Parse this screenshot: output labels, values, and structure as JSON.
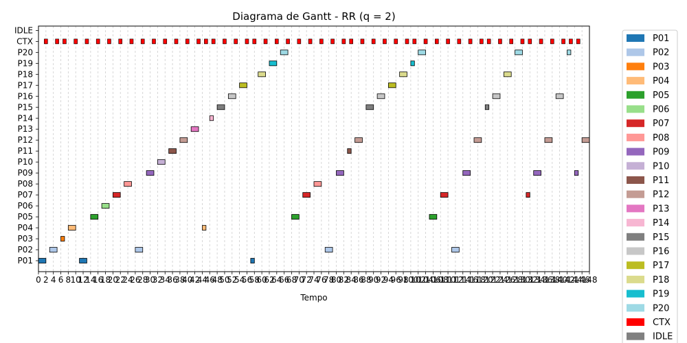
{
  "chart_data": {
    "type": "gantt",
    "title": "Diagrama de Gantt - RR (q = 2)",
    "xlabel": "Tempo",
    "ylabel": "",
    "xlim": [
      0,
      148
    ],
    "x_ticks": [
      0,
      2,
      4,
      6,
      8,
      10,
      12,
      14,
      16,
      18,
      20,
      22,
      24,
      26,
      28,
      30,
      32,
      34,
      36,
      38,
      40,
      42,
      44,
      46,
      48,
      50,
      52,
      54,
      56,
      58,
      60,
      62,
      64,
      66,
      68,
      70,
      72,
      74,
      76,
      78,
      80,
      82,
      84,
      86,
      88,
      90,
      92,
      94,
      96,
      98,
      100,
      102,
      104,
      106,
      108,
      110,
      112,
      114,
      116,
      118,
      120,
      122,
      124,
      126,
      128,
      130,
      132,
      134,
      136,
      138,
      140,
      142,
      144,
      146,
      148
    ],
    "rows": [
      "P01",
      "P02",
      "P03",
      "P04",
      "P05",
      "P06",
      "P07",
      "P08",
      "P09",
      "P10",
      "P11",
      "P12",
      "P13",
      "P14",
      "P15",
      "P16",
      "P17",
      "P18",
      "P19",
      "P20",
      "CTX",
      "IDLE"
    ],
    "grid": "x-dashed",
    "legend_position": "right-outside",
    "legend": [
      {
        "label": "P01",
        "color": "#1f77b4"
      },
      {
        "label": "P02",
        "color": "#aec7e8"
      },
      {
        "label": "P03",
        "color": "#ff7f0e"
      },
      {
        "label": "P04",
        "color": "#ffbb78"
      },
      {
        "label": "P05",
        "color": "#2ca02c"
      },
      {
        "label": "P06",
        "color": "#98df8a"
      },
      {
        "label": "P07",
        "color": "#d62728"
      },
      {
        "label": "P08",
        "color": "#ff9896"
      },
      {
        "label": "P09",
        "color": "#9467bd"
      },
      {
        "label": "P10",
        "color": "#c5b0d5"
      },
      {
        "label": "P11",
        "color": "#8c564b"
      },
      {
        "label": "P12",
        "color": "#c49c94"
      },
      {
        "label": "P13",
        "color": "#e377c2"
      },
      {
        "label": "P14",
        "color": "#f7b6d2"
      },
      {
        "label": "P15",
        "color": "#7f7f7f"
      },
      {
        "label": "P16",
        "color": "#c7c7c7"
      },
      {
        "label": "P17",
        "color": "#bcbd22"
      },
      {
        "label": "P18",
        "color": "#dbdb8d"
      },
      {
        "label": "P19",
        "color": "#17becf"
      },
      {
        "label": "P20",
        "color": "#9edae5"
      },
      {
        "label": "CTX",
        "color": "#ff0000"
      },
      {
        "label": "IDLE",
        "color": "#808080"
      }
    ],
    "bars": [
      {
        "row": "P01",
        "start": 0,
        "end": 2
      },
      {
        "row": "P02",
        "start": 3,
        "end": 5
      },
      {
        "row": "P03",
        "start": 6,
        "end": 7
      },
      {
        "row": "P04",
        "start": 8,
        "end": 10
      },
      {
        "row": "P01",
        "start": 11,
        "end": 13
      },
      {
        "row": "P05",
        "start": 14,
        "end": 16
      },
      {
        "row": "P06",
        "start": 17,
        "end": 19
      },
      {
        "row": "P07",
        "start": 20,
        "end": 22
      },
      {
        "row": "P08",
        "start": 23,
        "end": 25
      },
      {
        "row": "P02",
        "start": 26,
        "end": 28
      },
      {
        "row": "P09",
        "start": 29,
        "end": 31
      },
      {
        "row": "P10",
        "start": 32,
        "end": 34
      },
      {
        "row": "P11",
        "start": 35,
        "end": 37
      },
      {
        "row": "P12",
        "start": 38,
        "end": 40
      },
      {
        "row": "P13",
        "start": 41,
        "end": 43
      },
      {
        "row": "P04",
        "start": 44,
        "end": 45
      },
      {
        "row": "P14",
        "start": 46,
        "end": 47
      },
      {
        "row": "P15",
        "start": 48,
        "end": 50
      },
      {
        "row": "P16",
        "start": 51,
        "end": 53
      },
      {
        "row": "P17",
        "start": 54,
        "end": 56
      },
      {
        "row": "P01",
        "start": 57,
        "end": 58
      },
      {
        "row": "P18",
        "start": 59,
        "end": 61
      },
      {
        "row": "P19",
        "start": 62,
        "end": 64
      },
      {
        "row": "P20",
        "start": 65,
        "end": 67
      },
      {
        "row": "P05",
        "start": 68,
        "end": 70
      },
      {
        "row": "P07",
        "start": 71,
        "end": 73
      },
      {
        "row": "P08",
        "start": 74,
        "end": 76
      },
      {
        "row": "P02",
        "start": 77,
        "end": 79
      },
      {
        "row": "P09",
        "start": 80,
        "end": 82
      },
      {
        "row": "P11",
        "start": 83,
        "end": 84
      },
      {
        "row": "P12",
        "start": 85,
        "end": 87
      },
      {
        "row": "P15",
        "start": 88,
        "end": 90
      },
      {
        "row": "P16",
        "start": 91,
        "end": 93
      },
      {
        "row": "P17",
        "start": 94,
        "end": 96
      },
      {
        "row": "P18",
        "start": 97,
        "end": 99
      },
      {
        "row": "P19",
        "start": 100,
        "end": 101
      },
      {
        "row": "P20",
        "start": 102,
        "end": 104
      },
      {
        "row": "P05",
        "start": 105,
        "end": 107
      },
      {
        "row": "P07",
        "start": 108,
        "end": 110
      },
      {
        "row": "P02",
        "start": 111,
        "end": 113
      },
      {
        "row": "P09",
        "start": 114,
        "end": 116
      },
      {
        "row": "P12",
        "start": 117,
        "end": 119
      },
      {
        "row": "P15",
        "start": 120,
        "end": 121
      },
      {
        "row": "P16",
        "start": 122,
        "end": 124
      },
      {
        "row": "P18",
        "start": 125,
        "end": 127
      },
      {
        "row": "P20",
        "start": 128,
        "end": 130
      },
      {
        "row": "P07",
        "start": 131,
        "end": 132
      },
      {
        "row": "P09",
        "start": 133,
        "end": 135
      },
      {
        "row": "P12",
        "start": 136,
        "end": 138
      },
      {
        "row": "P16",
        "start": 139,
        "end": 141
      },
      {
        "row": "P20",
        "start": 142,
        "end": 143
      },
      {
        "row": "P09",
        "start": 144,
        "end": 145
      },
      {
        "row": "P12",
        "start": 146,
        "end": 148
      }
    ],
    "ctx_marks": [
      2,
      5,
      7,
      10,
      13,
      16,
      19,
      22,
      25,
      28,
      31,
      34,
      37,
      40,
      43,
      45,
      47,
      50,
      53,
      56,
      58,
      61,
      64,
      67,
      70,
      73,
      76,
      79,
      82,
      84,
      87,
      90,
      93,
      96,
      99,
      101,
      104,
      107,
      110,
      113,
      116,
      119,
      121,
      124,
      127,
      130,
      132,
      135,
      138,
      141,
      143,
      145
    ]
  }
}
